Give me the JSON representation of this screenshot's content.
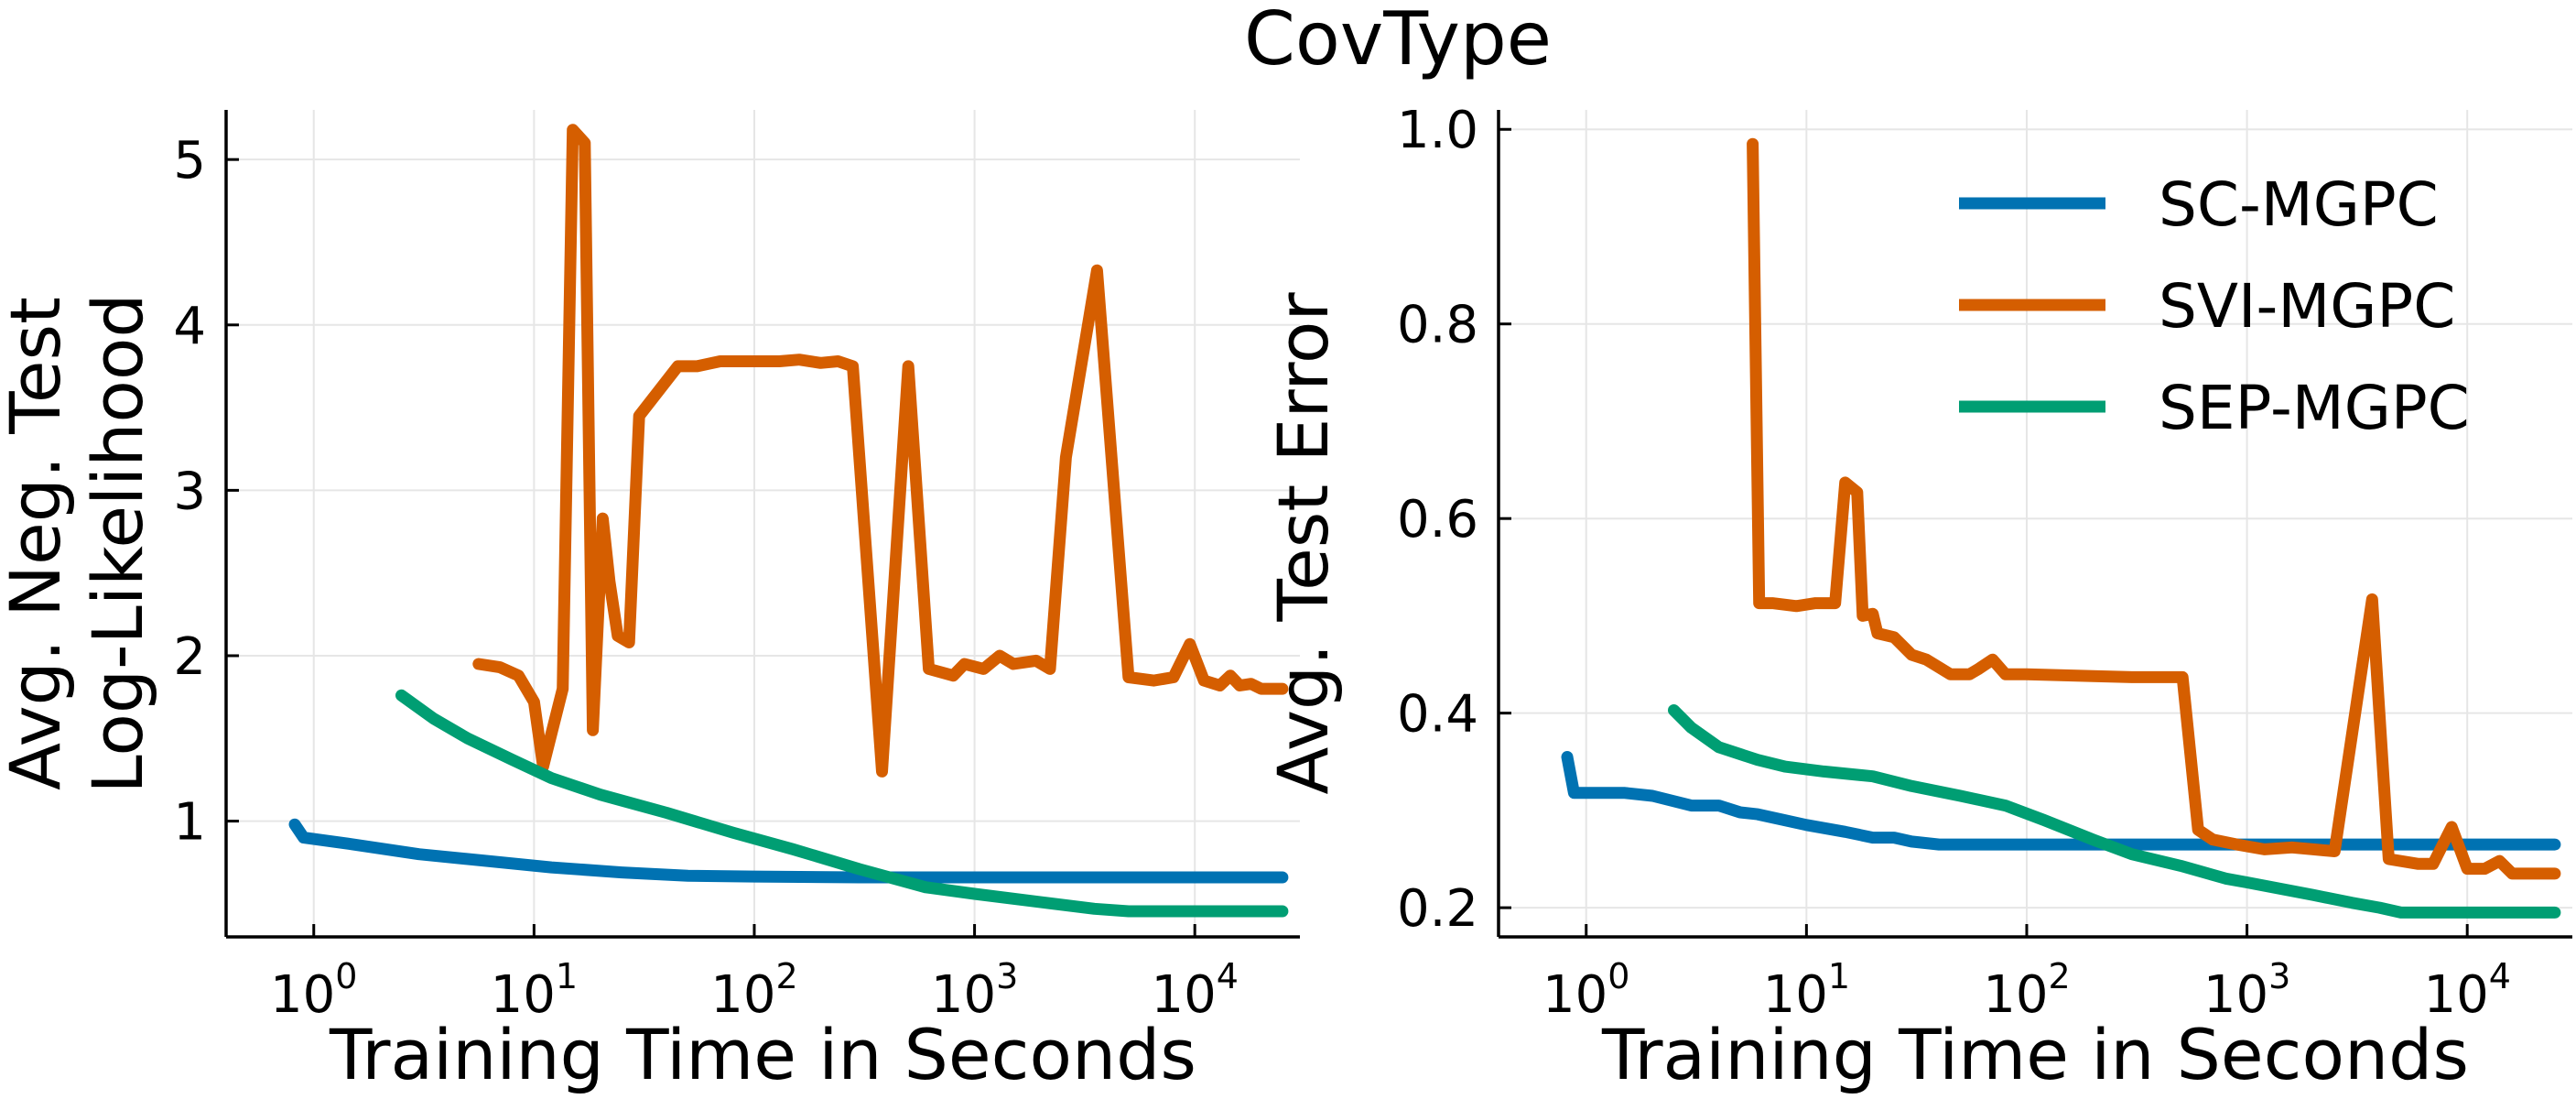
{
  "title": "CovType",
  "colors": {
    "sc": "#0072B2",
    "svi": "#D55E00",
    "sep": "#009E73"
  },
  "chart_data": [
    {
      "type": "line",
      "xscale": "log",
      "xlabel": "Training Time in Seconds",
      "ylabel": [
        "Avg. Neg. Test",
        "Log-Likelihood"
      ],
      "xlim": [
        0.4,
        30000
      ],
      "ylim": [
        0.3,
        5.3
      ],
      "xticks": [
        {
          "base": "10",
          "exp": "0",
          "value": 1
        },
        {
          "base": "10",
          "exp": "1",
          "value": 10
        },
        {
          "base": "10",
          "exp": "2",
          "value": 100
        },
        {
          "base": "10",
          "exp": "3",
          "value": 1000
        },
        {
          "base": "10",
          "exp": "4",
          "value": 10000
        }
      ],
      "yticks": [
        {
          "label": "1",
          "value": 1
        },
        {
          "label": "2",
          "value": 2
        },
        {
          "label": "3",
          "value": 3
        },
        {
          "label": "4",
          "value": 4
        },
        {
          "label": "5",
          "value": 5
        }
      ],
      "grid": true,
      "series": [
        {
          "name": "SC-MGPC",
          "color_key": "sc",
          "points": [
            [
              0.82,
              0.98
            ],
            [
              0.9,
              0.9
            ],
            [
              1.5,
              0.86
            ],
            [
              3,
              0.8
            ],
            [
              6,
              0.76
            ],
            [
              12,
              0.72
            ],
            [
              25,
              0.69
            ],
            [
              50,
              0.67
            ],
            [
              100,
              0.665
            ],
            [
              300,
              0.66
            ],
            [
              1000,
              0.66
            ],
            [
              5000,
              0.66
            ],
            [
              25000,
              0.66
            ]
          ]
        },
        {
          "name": "SVI-MGPC",
          "color_key": "svi",
          "points": [
            [
              5.6,
              1.95
            ],
            [
              7,
              1.93
            ],
            [
              8.5,
              1.88
            ],
            [
              10,
              1.72
            ],
            [
              11,
              1.33
            ],
            [
              13.5,
              1.8
            ],
            [
              15,
              5.18
            ],
            [
              17,
              5.1
            ],
            [
              18.5,
              1.55
            ],
            [
              20.5,
              2.83
            ],
            [
              22,
              2.45
            ],
            [
              24,
              2.12
            ],
            [
              27,
              2.08
            ],
            [
              30,
              3.45
            ],
            [
              45,
              3.75
            ],
            [
              55,
              3.75
            ],
            [
              70,
              3.78
            ],
            [
              90,
              3.78
            ],
            [
              130,
              3.78
            ],
            [
              160,
              3.79
            ],
            [
              200,
              3.77
            ],
            [
              240,
              3.78
            ],
            [
              280,
              3.75
            ],
            [
              380,
              1.3
            ],
            [
              500,
              3.75
            ],
            [
              620,
              1.92
            ],
            [
              800,
              1.88
            ],
            [
              900,
              1.95
            ],
            [
              1100,
              1.92
            ],
            [
              1300,
              2.0
            ],
            [
              1500,
              1.95
            ],
            [
              1900,
              1.97
            ],
            [
              2200,
              1.92
            ],
            [
              2600,
              3.2
            ],
            [
              3600,
              4.33
            ],
            [
              5000,
              1.87
            ],
            [
              6500,
              1.85
            ],
            [
              8000,
              1.87
            ],
            [
              9500,
              2.07
            ],
            [
              11000,
              1.85
            ],
            [
              13000,
              1.82
            ],
            [
              14500,
              1.88
            ],
            [
              16000,
              1.82
            ],
            [
              18000,
              1.83
            ],
            [
              20000,
              1.8
            ],
            [
              25000,
              1.8
            ]
          ]
        },
        {
          "name": "SEP-MGPC",
          "color_key": "sep",
          "points": [
            [
              2.5,
              1.76
            ],
            [
              3.5,
              1.62
            ],
            [
              5,
              1.5
            ],
            [
              8,
              1.37
            ],
            [
              12,
              1.26
            ],
            [
              20,
              1.16
            ],
            [
              40,
              1.05
            ],
            [
              80,
              0.93
            ],
            [
              150,
              0.83
            ],
            [
              300,
              0.71
            ],
            [
              600,
              0.6
            ],
            [
              1000,
              0.56
            ],
            [
              2000,
              0.51
            ],
            [
              3500,
              0.47
            ],
            [
              5000,
              0.455
            ],
            [
              10000,
              0.455
            ],
            [
              25000,
              0.455
            ]
          ]
        }
      ]
    },
    {
      "type": "line",
      "xscale": "log",
      "xlabel": "Training Time in Seconds",
      "ylabel": [
        "Avg. Test Error"
      ],
      "xlim": [
        0.4,
        30000
      ],
      "ylim": [
        0.17,
        1.02
      ],
      "xticks": [
        {
          "base": "10",
          "exp": "0",
          "value": 1
        },
        {
          "base": "10",
          "exp": "1",
          "value": 10
        },
        {
          "base": "10",
          "exp": "2",
          "value": 100
        },
        {
          "base": "10",
          "exp": "3",
          "value": 1000
        },
        {
          "base": "10",
          "exp": "4",
          "value": 10000
        }
      ],
      "yticks": [
        {
          "label": "0.2",
          "value": 0.2
        },
        {
          "label": "0.4",
          "value": 0.4
        },
        {
          "label": "0.6",
          "value": 0.6
        },
        {
          "label": "0.8",
          "value": 0.8
        },
        {
          "label": "1.0",
          "value": 1.0
        }
      ],
      "grid": true,
      "legend": "top-right",
      "series": [
        {
          "name": "SC-MGPC",
          "color_key": "sc",
          "points": [
            [
              0.82,
              0.355
            ],
            [
              0.88,
              0.318
            ],
            [
              1.5,
              0.318
            ],
            [
              2,
              0.315
            ],
            [
              3,
              0.305
            ],
            [
              4,
              0.305
            ],
            [
              5,
              0.298
            ],
            [
              6,
              0.296
            ],
            [
              10,
              0.285
            ],
            [
              15,
              0.278
            ],
            [
              20,
              0.272
            ],
            [
              25,
              0.272
            ],
            [
              30,
              0.268
            ],
            [
              40,
              0.265
            ],
            [
              100,
              0.265
            ],
            [
              500,
              0.265
            ],
            [
              1000,
              0.265
            ],
            [
              5000,
              0.265
            ],
            [
              25000,
              0.265
            ]
          ]
        },
        {
          "name": "SVI-MGPC",
          "color_key": "svi",
          "points": [
            [
              5.7,
              0.985
            ],
            [
              6.1,
              0.513
            ],
            [
              7,
              0.513
            ],
            [
              9,
              0.51
            ],
            [
              11,
              0.513
            ],
            [
              13.5,
              0.513
            ],
            [
              15,
              0.637
            ],
            [
              17,
              0.627
            ],
            [
              18,
              0.5
            ],
            [
              20,
              0.502
            ],
            [
              21,
              0.482
            ],
            [
              25,
              0.478
            ],
            [
              30,
              0.46
            ],
            [
              35,
              0.455
            ],
            [
              45,
              0.44
            ],
            [
              55,
              0.44
            ],
            [
              60,
              0.445
            ],
            [
              70,
              0.455
            ],
            [
              80,
              0.44
            ],
            [
              100,
              0.44
            ],
            [
              200,
              0.438
            ],
            [
              300,
              0.437
            ],
            [
              400,
              0.437
            ],
            [
              510,
              0.437
            ],
            [
              600,
              0.28
            ],
            [
              700,
              0.27
            ],
            [
              900,
              0.265
            ],
            [
              1200,
              0.26
            ],
            [
              1600,
              0.262
            ],
            [
              2000,
              0.26
            ],
            [
              2500,
              0.258
            ],
            [
              3700,
              0.517
            ],
            [
              4400,
              0.25
            ],
            [
              6000,
              0.245
            ],
            [
              7000,
              0.245
            ],
            [
              8500,
              0.283
            ],
            [
              10000,
              0.24
            ],
            [
              12000,
              0.24
            ],
            [
              14000,
              0.248
            ],
            [
              16000,
              0.235
            ],
            [
              20000,
              0.235
            ],
            [
              25000,
              0.235
            ]
          ]
        },
        {
          "name": "SEP-MGPC",
          "color_key": "sep",
          "points": [
            [
              2.5,
              0.403
            ],
            [
              3,
              0.385
            ],
            [
              4,
              0.365
            ],
            [
              6,
              0.352
            ],
            [
              8,
              0.345
            ],
            [
              12,
              0.34
            ],
            [
              20,
              0.335
            ],
            [
              30,
              0.325
            ],
            [
              50,
              0.315
            ],
            [
              80,
              0.305
            ],
            [
              120,
              0.29
            ],
            [
              200,
              0.27
            ],
            [
              300,
              0.255
            ],
            [
              500,
              0.243
            ],
            [
              800,
              0.23
            ],
            [
              1000,
              0.226
            ],
            [
              2000,
              0.213
            ],
            [
              3000,
              0.205
            ],
            [
              4000,
              0.2
            ],
            [
              5000,
              0.195
            ],
            [
              10000,
              0.195
            ],
            [
              25000,
              0.195
            ]
          ]
        }
      ]
    }
  ]
}
